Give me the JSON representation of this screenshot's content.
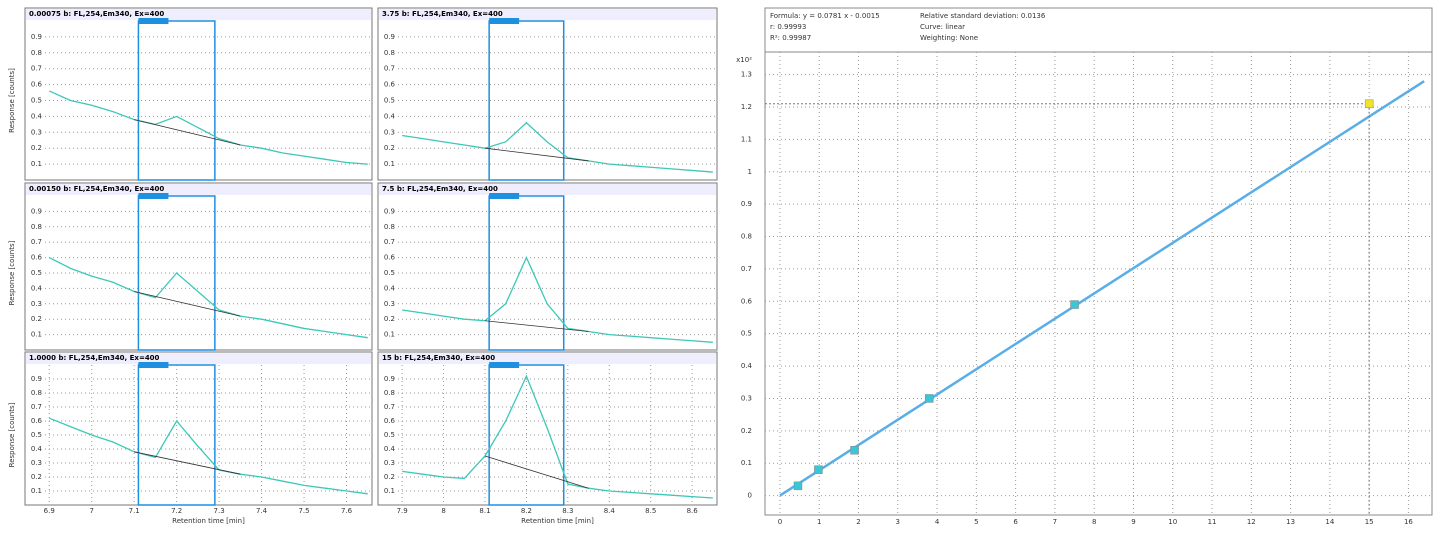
{
  "panels": [
    {
      "title": "0.00075 b: FL,254,Em340, Ex=400",
      "ylabel": "Response [counts]",
      "xlim": [
        6.89,
        7.66
      ],
      "ylim": [
        0,
        1
      ],
      "yticks": [
        0.1,
        0.2,
        0.3,
        0.4,
        0.5,
        0.6,
        0.7,
        0.8,
        0.9
      ],
      "window": [
        7.11,
        7.29
      ],
      "x": [
        6.9,
        6.95,
        7.0,
        7.05,
        7.1,
        7.15,
        7.2,
        7.25,
        7.3,
        7.35,
        7.4,
        7.45,
        7.5,
        7.55,
        7.6,
        7.65
      ],
      "values": [
        0.56,
        0.5,
        0.47,
        0.43,
        0.38,
        0.35,
        0.4,
        0.33,
        0.26,
        0.22,
        0.2,
        0.17,
        0.15,
        0.13,
        0.11,
        0.1
      ]
    },
    {
      "title": "0.00150 b: FL,254,Em340, Ex=400",
      "ylabel": "Response [counts]",
      "xlim": [
        6.89,
        7.66
      ],
      "ylim": [
        0,
        1
      ],
      "yticks": [
        0.1,
        0.2,
        0.3,
        0.4,
        0.5,
        0.6,
        0.7,
        0.8,
        0.9
      ],
      "window": [
        7.11,
        7.29
      ],
      "x": [
        6.9,
        6.95,
        7.0,
        7.05,
        7.1,
        7.15,
        7.2,
        7.25,
        7.3,
        7.35,
        7.4,
        7.45,
        7.5,
        7.55,
        7.6,
        7.65
      ],
      "values": [
        0.6,
        0.53,
        0.48,
        0.44,
        0.38,
        0.34,
        0.5,
        0.38,
        0.26,
        0.22,
        0.2,
        0.17,
        0.14,
        0.12,
        0.1,
        0.08
      ]
    },
    {
      "title": "1.0000 b: FL,254,Em340, Ex=400",
      "ylabel": "Response [counts]",
      "xlabel": "Retention time [min]",
      "xlim": [
        6.89,
        7.66
      ],
      "ylim": [
        0,
        1
      ],
      "yticks": [
        0.1,
        0.2,
        0.3,
        0.4,
        0.5,
        0.6,
        0.7,
        0.8,
        0.9
      ],
      "window": [
        7.11,
        7.29
      ],
      "xticks": [
        6.9,
        7.0,
        7.1,
        7.2,
        7.3,
        7.4,
        7.5,
        7.6
      ],
      "x": [
        6.9,
        6.95,
        7.0,
        7.05,
        7.1,
        7.15,
        7.2,
        7.25,
        7.3,
        7.35,
        7.4,
        7.45,
        7.5,
        7.55,
        7.6,
        7.65
      ],
      "values": [
        0.62,
        0.56,
        0.5,
        0.45,
        0.38,
        0.34,
        0.6,
        0.42,
        0.25,
        0.22,
        0.2,
        0.17,
        0.14,
        0.12,
        0.1,
        0.08
      ]
    },
    {
      "title": "3.75 b: FL,254,Em340, Ex=400",
      "xlim": [
        7.89,
        8.66
      ],
      "ylim": [
        0,
        1
      ],
      "yticks": [
        0.1,
        0.2,
        0.3,
        0.4,
        0.5,
        0.6,
        0.7,
        0.8,
        0.9
      ],
      "window": [
        8.11,
        8.29
      ],
      "x": [
        7.9,
        7.95,
        8.0,
        8.05,
        8.1,
        8.15,
        8.2,
        8.25,
        8.3,
        8.35,
        8.4,
        8.45,
        8.5,
        8.55,
        8.6,
        8.65
      ],
      "values": [
        0.28,
        0.26,
        0.24,
        0.22,
        0.2,
        0.24,
        0.36,
        0.24,
        0.14,
        0.12,
        0.1,
        0.09,
        0.08,
        0.07,
        0.06,
        0.05
      ]
    },
    {
      "title": "7.5 b: FL,254,Em340, Ex=400",
      "xlim": [
        7.89,
        8.66
      ],
      "ylim": [
        0,
        1
      ],
      "yticks": [
        0.1,
        0.2,
        0.3,
        0.4,
        0.5,
        0.6,
        0.7,
        0.8,
        0.9
      ],
      "window": [
        8.11,
        8.29
      ],
      "x": [
        7.9,
        7.95,
        8.0,
        8.05,
        8.1,
        8.15,
        8.2,
        8.25,
        8.3,
        8.35,
        8.4,
        8.45,
        8.5,
        8.55,
        8.6,
        8.65
      ],
      "values": [
        0.26,
        0.24,
        0.22,
        0.2,
        0.19,
        0.3,
        0.6,
        0.3,
        0.14,
        0.12,
        0.1,
        0.09,
        0.08,
        0.07,
        0.06,
        0.05
      ]
    },
    {
      "title": "15 b: FL,254,Em340, Ex=400",
      "xlabel": "Retention time [min]",
      "xlim": [
        7.89,
        8.66
      ],
      "ylim": [
        0,
        1
      ],
      "yticks": [
        0.1,
        0.2,
        0.3,
        0.4,
        0.5,
        0.6,
        0.7,
        0.8,
        0.9
      ],
      "window": [
        8.11,
        8.29
      ],
      "xticks": [
        7.9,
        8.0,
        8.1,
        8.2,
        8.3,
        8.4,
        8.5,
        8.6
      ],
      "x": [
        7.9,
        7.95,
        8.0,
        8.05,
        8.1,
        8.15,
        8.2,
        8.25,
        8.3,
        8.35,
        8.4,
        8.45,
        8.5,
        8.55,
        8.6,
        8.65
      ],
      "values": [
        0.24,
        0.22,
        0.2,
        0.19,
        0.35,
        0.6,
        0.92,
        0.55,
        0.15,
        0.12,
        0.1,
        0.09,
        0.08,
        0.07,
        0.06,
        0.05
      ]
    }
  ],
  "calibration": {
    "header": [
      "Formula: y = 0.0781 x - 0.0015",
      "Relative standard deviation: 0.0136",
      "r: 0.99993",
      "Curve: linear",
      "R²: 0.99987",
      "Weighting: None"
    ],
    "multiplier": "x10²",
    "xlim": [
      -0.38,
      16.6
    ],
    "ylim": [
      -0.06,
      1.37
    ],
    "xticks": [
      0,
      1,
      2,
      3,
      4,
      5,
      6,
      7,
      8,
      9,
      10,
      11,
      12,
      13,
      14,
      15,
      16
    ],
    "yticks": [
      0.0,
      0.1,
      0.2,
      0.3,
      0.4,
      0.5,
      0.6,
      0.7,
      0.8,
      0.9,
      1.0,
      1.1,
      1.2,
      1.3
    ],
    "x": [
      0.46,
      0.98,
      1.9,
      3.8,
      7.5,
      15
    ],
    "y": [
      0.03,
      0.08,
      0.14,
      0.3,
      0.59,
      1.21
    ],
    "point_colors": [
      "#39c6d6",
      "#39c6d6",
      "#39c6d6",
      "#39c6d6",
      "#39c6d6",
      "#f2e22a"
    ],
    "fit_x": [
      0,
      16.4
    ],
    "fit_y": [
      0,
      1.28
    ],
    "line_color": "#5aaee8"
  }
}
